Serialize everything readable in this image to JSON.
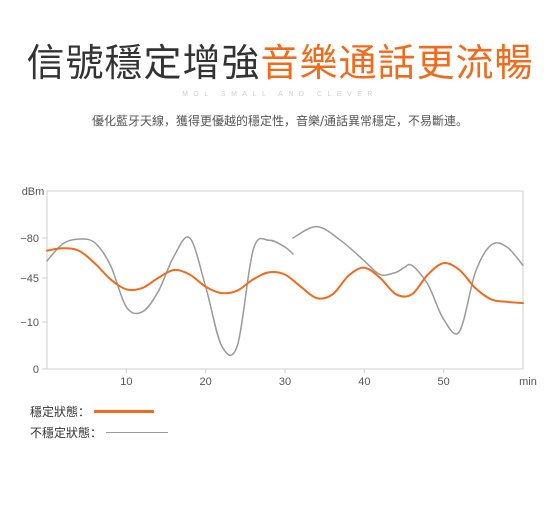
{
  "header": {
    "title_part1": "信號穩定增強",
    "title_part2": "音樂通話更流暢",
    "tagline": "MOL SMALL AND CLEVER",
    "description": "優化藍牙天線，獲得更優越的穩定性，音樂/通話異常穩定，不易斷連。"
  },
  "colors": {
    "accent": "#f26a1b",
    "dark": "#333333",
    "unstable": "#9a9a9a",
    "axis": "#cfcfcf"
  },
  "chart_data": {
    "type": "line",
    "ylabel": "dBm",
    "xlabel": "min",
    "y_ticks": [
      "−80",
      "−45",
      "−10",
      "0"
    ],
    "x_ticks": [
      "10",
      "20",
      "30",
      "40",
      "50"
    ],
    "x_tick_values": [
      10,
      20,
      30,
      40,
      50
    ],
    "xlim": [
      0,
      60
    ],
    "y_tick_levels": [
      -80,
      -45,
      -10,
      0
    ],
    "grid": false,
    "legend_placement": "bottom-left",
    "series": [
      {
        "name": "穩定狀態：",
        "x": [
          0,
          2,
          4,
          6,
          8,
          10,
          12,
          14,
          16,
          18,
          20,
          22,
          24,
          26,
          28,
          30,
          32,
          34,
          36,
          38,
          40,
          42,
          44,
          46,
          48,
          50,
          52,
          54,
          56,
          58,
          60
        ],
        "y": [
          -69,
          -71,
          -69,
          -58,
          -44,
          -36,
          -37,
          -45,
          -52,
          -48,
          -38,
          -33,
          -35,
          -44,
          -50,
          -48,
          -38,
          -29,
          -32,
          -47,
          -54,
          -45,
          -32,
          -32,
          -48,
          -58,
          -52,
          -37,
          -28,
          -26,
          -25
        ]
      },
      {
        "name": "不穩定狀態：",
        "segments": [
          {
            "x": [
              0,
              2,
              4,
              6,
              8,
              10,
              12,
              14,
              16,
              18,
              20,
              22,
              24,
              26,
              28,
              30,
              31
            ],
            "y": [
              -60,
              -75,
              -79,
              -76,
              -56,
              -22,
              -18,
              -34,
              -64,
              -80,
              -38,
              -5,
              -5,
              -70,
              -78,
              -72,
              -66
            ]
          },
          {
            "x": [
              31,
              34,
              37,
              40,
              42,
              44,
              45,
              46,
              48,
              50,
              52,
              54,
              56,
              58,
              60
            ],
            "y": [
              -80,
              -90,
              -78,
              -60,
              -48,
              -50,
              -54,
              -56,
              -40,
              -12,
              -8,
              -50,
              -74,
              -72,
              -56
            ]
          }
        ]
      }
    ]
  }
}
